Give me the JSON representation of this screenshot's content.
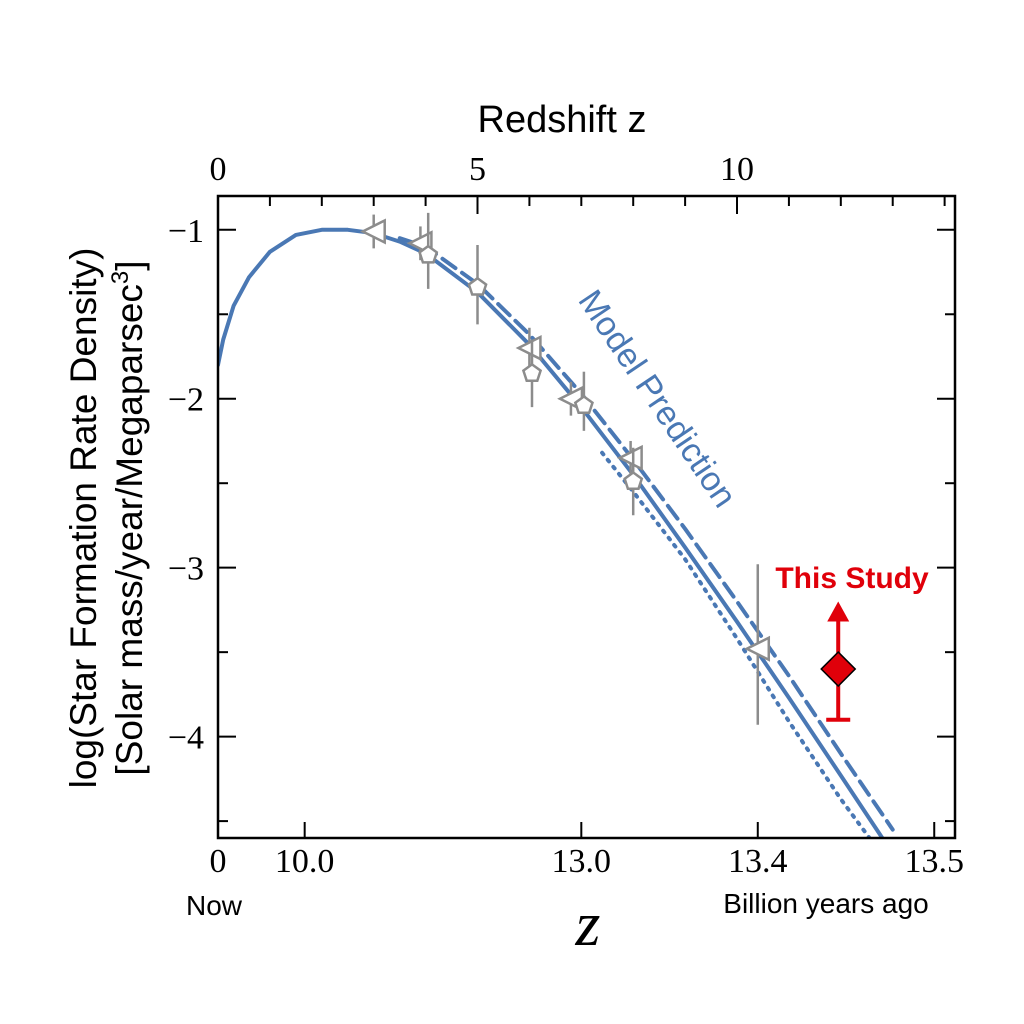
{
  "chart_data": {
    "type": "line",
    "top_axis": {
      "label": "Redshift z",
      "tick_labels": [
        "0",
        "5",
        "10"
      ],
      "tick_values": [
        0,
        5,
        10
      ]
    },
    "x": {
      "label": "z",
      "tick_labels": [
        "0",
        "10.0",
        "13.0",
        "13.4",
        "13.5"
      ],
      "end_left": "Now",
      "end_right": "Billion years ago",
      "range_redshift": [
        0,
        14.2
      ]
    },
    "y": {
      "label_line1": "log(Star Formation Rate Density)",
      "label_line2_prefix": "[Solar mass/year/Megaparsec",
      "label_line2_sup": "3",
      "label_line2_suffix": "]",
      "tick_labels": [
        "−1",
        "−2",
        "−3",
        "−4"
      ],
      "tick_values": [
        -1,
        -2,
        -3,
        -4
      ],
      "range": [
        -4.6,
        -0.8
      ]
    },
    "annotations": {
      "model": "Model Prediction",
      "study": "This Study"
    },
    "colors": {
      "model": "#4a78b4",
      "study": "#e0000a",
      "observations": "#8c8c8c",
      "axis": "#000000"
    },
    "series": [
      {
        "style": "solid",
        "x": [
          0,
          0.1,
          0.3,
          0.6,
          1.0,
          1.5,
          2.0,
          2.5,
          3.0,
          3.5,
          4.0,
          5.0,
          6.0,
          7.0,
          8.0,
          9.0,
          10.0,
          11.0,
          12.0,
          12.8
        ],
        "y": [
          -1.8,
          -1.65,
          -1.45,
          -1.28,
          -1.13,
          -1.03,
          -1.0,
          -1.0,
          -1.02,
          -1.07,
          -1.14,
          -1.37,
          -1.68,
          -2.05,
          -2.45,
          -2.88,
          -3.32,
          -3.77,
          -4.23,
          -4.6
        ]
      },
      {
        "style": "dashed",
        "x": [
          3.5,
          4.0,
          5.0,
          6.0,
          7.0,
          8.0,
          9.0,
          10.0,
          11.0,
          12.0,
          13.0
        ],
        "y": [
          -1.05,
          -1.1,
          -1.32,
          -1.62,
          -1.97,
          -2.36,
          -2.77,
          -3.2,
          -3.64,
          -4.1,
          -4.55
        ]
      },
      {
        "style": "dotted",
        "x": [
          7.4,
          8.0,
          9.0,
          10.0,
          11.0,
          12.0,
          12.6
        ],
        "y": [
          -2.32,
          -2.55,
          -2.95,
          -3.42,
          -3.91,
          -4.37,
          -4.62
        ]
      }
    ],
    "observations": [
      {
        "marker": "triangle-left",
        "x": 3.0,
        "y": -1.01,
        "err": [
          0.1,
          0.1
        ]
      },
      {
        "marker": "triangle-left",
        "x": 3.9,
        "y": -1.08,
        "err": [
          0.1,
          0.1
        ]
      },
      {
        "marker": "pentagon",
        "x": 4.05,
        "y": -1.15,
        "err": [
          0.2,
          0.25
        ]
      },
      {
        "marker": "pentagon",
        "x": 5.0,
        "y": -1.34,
        "err": [
          0.22,
          0.25
        ]
      },
      {
        "marker": "triangle-left",
        "x": 6.0,
        "y": -1.7,
        "err": [
          0.12,
          0.12
        ]
      },
      {
        "marker": "pentagon",
        "x": 6.05,
        "y": -1.85,
        "err": [
          0.2,
          0.2
        ]
      },
      {
        "marker": "triangle-left",
        "x": 6.8,
        "y": -2.0,
        "err": [
          0.1,
          0.1
        ]
      },
      {
        "marker": "pentagon",
        "x": 7.05,
        "y": -2.04,
        "err": [
          0.15,
          0.2
        ]
      },
      {
        "marker": "triangle-left",
        "x": 7.95,
        "y": -2.35,
        "err": [
          0.1,
          0.1
        ]
      },
      {
        "marker": "pentagon",
        "x": 8.0,
        "y": -2.49,
        "err": [
          0.2,
          0.2
        ]
      },
      {
        "marker": "triangle-left",
        "x": 10.4,
        "y": -3.48,
        "err": [
          0.45,
          0.5
        ]
      }
    ],
    "study_point": {
      "marker": "diamond",
      "x": 11.95,
      "y": -3.6,
      "lower": -3.9,
      "arrow_to": -3.2
    }
  }
}
